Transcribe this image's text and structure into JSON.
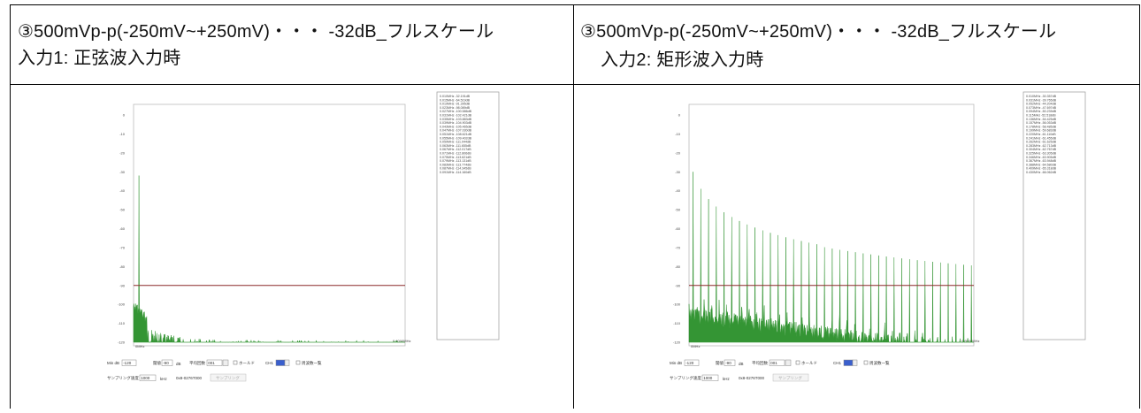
{
  "table": {
    "left": {
      "title": "③500mVp-p(-250mV~+250mV)・・・ -32dB_フルスケール",
      "subtitle": "入力1:  正弦波入力時"
    },
    "right": {
      "title": "③500mVp-p(-250mV~+250mV)・・・ -32dB_フルスケール",
      "subtitle": "入力2:  矩形波入力時"
    }
  },
  "spectrum": {
    "y_ticks": [
      "0",
      "-10",
      "-20",
      "-30",
      "-40",
      "-50",
      "-60",
      "-70",
      "-80",
      "-90",
      "-100",
      "-110",
      "-120"
    ],
    "x_start": "0MHz",
    "x_end": "0.6000MHz",
    "trace_color": "#1f8a1f",
    "threshold_color": "#8b2a2a",
    "threshold_db": -90
  },
  "controls": {
    "min_db_label": "Min dB",
    "min_db_value": "-120",
    "threshold_label": "閾値",
    "threshold_value": "-90",
    "db_unit": "dB",
    "avg_label": "平均回数",
    "avg_value": "001",
    "hold_label": "ホールド",
    "channel_label": "CH1",
    "list_label": "周波数一覧",
    "rate_label": "サンプリング速度",
    "rate_value": "1000",
    "rate_unit": "kHz",
    "range_text": "0x8-0276T000",
    "apply_button": "サンプリング"
  },
  "peaks_left": [
    "0.010MHz -32.191dB",
    "0.015MHz -64.519dB",
    "0.019MHz -91.395dB",
    "0.023MHz -98.089dB",
    "0.027MHz -100.586dB",
    "0.031MHz -102.421dB",
    "0.035MHz -103.883dB",
    "0.039MHz -104.903dB",
    "0.043MHz -105.465dB",
    "0.047MHz -107.030dB",
    "0.051MHz -108.621dB",
    "0.055MHz -109.402dB",
    "0.059MHz -111.044dB",
    "0.063MHz -111.655dB",
    "0.067MHz -112.017dB",
    "0.071MHz -112.806dB",
    "0.075MHz -113.621dB",
    "0.079MHz -113.131dB",
    "0.083MHz -113.774dB",
    "0.087MHz -114.345dB",
    "0.091MHz -114.160dB"
  ],
  "peaks_right": [
    "0.010MHz -30.357dB",
    "0.031MHz -39.765dB",
    "0.052MHz -44.204dB",
    "0.073MHz -47.697dB",
    "0.094MHz -50.239dB",
    "0.115MHz -52.518dB",
    "0.136MHz -54.425dB",
    "0.157MHz -56.053dB",
    "0.178MHz -58.485dB",
    "0.199MHz -59.683dB",
    "0.220MHz -61.110dB",
    "0.241MHz -61.455dB",
    "0.262MHz -61.625dB",
    "0.283MHz -62.713dB",
    "0.304MHz -62.767dB",
    "0.325MHz -63.305dB",
    "0.346MHz -63.905dB",
    "0.367MHz -63.948dB",
    "0.388MHz -64.580dB",
    "0.409MHz -65.318dB",
    "0.430MHz -66.062dB"
  ]
}
